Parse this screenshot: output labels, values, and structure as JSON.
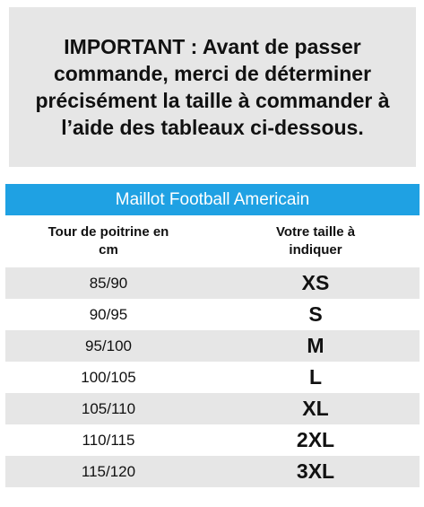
{
  "notice": {
    "text": "IMPORTANT : Avant de passer commande, merci de déterminer précisément la taille à commander à l’aide des tableaux ci-dessous."
  },
  "table": {
    "title": "Maillot Football Americain",
    "headers": {
      "chest": "Tour de poitrine en cm",
      "size": "Votre taille à indiquer"
    },
    "rows": [
      {
        "chest": "85/90",
        "size": "XS"
      },
      {
        "chest": "90/95",
        "size": "S"
      },
      {
        "chest": "95/100",
        "size": "M"
      },
      {
        "chest": "100/105",
        "size": "L"
      },
      {
        "chest": "105/110",
        "size": "XL"
      },
      {
        "chest": "110/115",
        "size": "2XL"
      },
      {
        "chest": "115/120",
        "size": "3XL"
      }
    ]
  },
  "colors": {
    "accent": "#1fa1e3",
    "band": "#e6e6e6"
  }
}
